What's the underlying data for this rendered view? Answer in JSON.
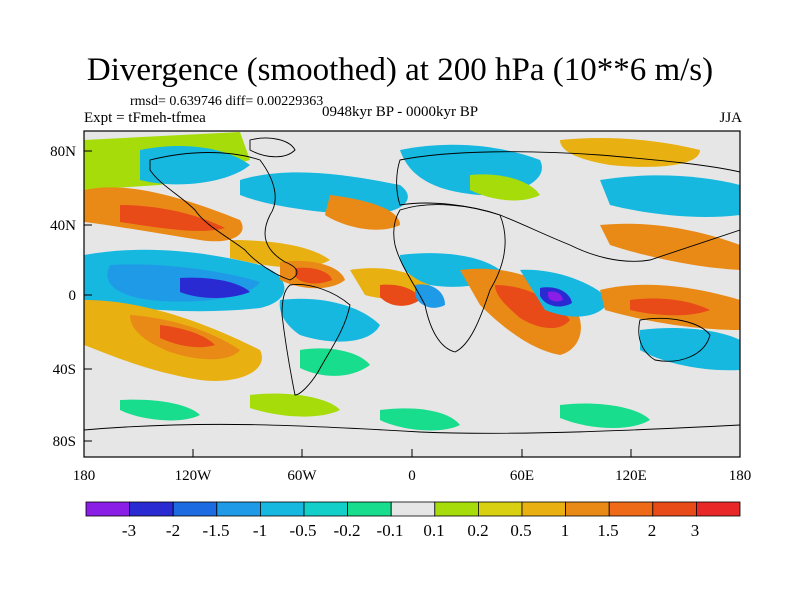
{
  "title": "Divergence (smoothed) at 200 hPa (10**6 m/s)",
  "stats": {
    "rmsd_text": "rmsd= 0.639746 diff= 0.00229363"
  },
  "experiment": "Expt = tFmeh-tfmea",
  "period": "0948kyr BP - 0000kyr BP",
  "season": "JJA",
  "axes": {
    "lat_labels": [
      "80N",
      "40N",
      "0",
      "40S",
      "80S"
    ],
    "lon_labels": [
      "180",
      "120W",
      "60W",
      "0",
      "60E",
      "120E",
      "180"
    ]
  },
  "colorbar": {
    "colors": [
      "#8a1ee6",
      "#2a2ad2",
      "#1c6be0",
      "#1f9ae6",
      "#16b8e0",
      "#12cfc9",
      "#18dd8c",
      "#e6e6e6",
      "#a5dc0a",
      "#d8d010",
      "#e8b010",
      "#e98a16",
      "#ee6a16",
      "#e84a18",
      "#e82828"
    ],
    "labels": [
      "-3",
      "-2",
      "-1.5",
      "-1",
      "-0.5",
      "-0.2",
      "-0.1",
      "0.1",
      "0.2",
      "0.5",
      "1",
      "1.5",
      "2",
      "3"
    ]
  },
  "field_colors": {
    "background": "#e6e6e6",
    "positive_strong": "#e84a18",
    "positive_mid": "#e98a16",
    "positive_weak": "#e8b010",
    "positive_faint": "#a5dc0a",
    "negative_faint": "#18dd8c",
    "negative_weak": "#16b8e0",
    "negative_mid": "#1f9ae6",
    "negative_strong": "#2a2ad2",
    "negative_extreme": "#8a1ee6"
  }
}
